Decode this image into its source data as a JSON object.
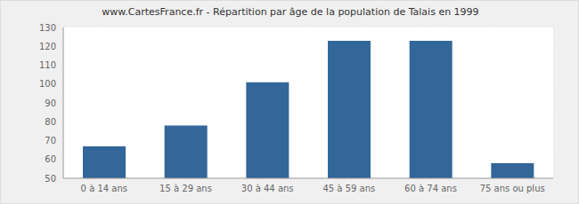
{
  "chart_data": {
    "type": "bar",
    "title": "www.CartesFrance.fr - Répartition par âge de la population de Talais en 1999",
    "categories": [
      "0 à 14 ans",
      "15 à 29 ans",
      "30 à 44 ans",
      "45 à 59 ans",
      "60 à 74 ans",
      "75 ans ou plus"
    ],
    "values": [
      67,
      78,
      101,
      123,
      123,
      58
    ],
    "color": "#336699",
    "ylim": [
      50,
      130
    ],
    "yticks": [
      50,
      60,
      70,
      80,
      90,
      100,
      110,
      120,
      130
    ],
    "grid": true
  }
}
